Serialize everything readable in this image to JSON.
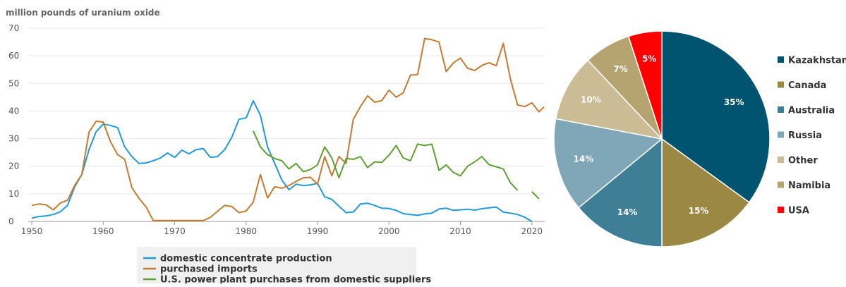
{
  "chart_data": [
    {
      "type": "line",
      "ylabel": "million pounds of uranium oxide",
      "xlim": [
        1949.5,
        2021.8
      ],
      "ylim": [
        0,
        70
      ],
      "x_ticks": [
        "1950",
        "1960",
        "1970",
        "1980",
        "1990",
        "2000",
        "2010",
        "2020"
      ],
      "y_ticks": [
        "0",
        "10",
        "20",
        "30",
        "40",
        "50",
        "60",
        "70"
      ],
      "grid": "horizontal",
      "legend_position": "bottom",
      "series": [
        {
          "name": "domestic concentrate production",
          "color": "#1f9bd7",
          "points": [
            [
              1950,
              1.2
            ],
            [
              1951,
              1.8
            ],
            [
              1952,
              2.0
            ],
            [
              1953,
              2.5
            ],
            [
              1954,
              3.5
            ],
            [
              1955,
              5.8
            ],
            [
              1956,
              12.5
            ],
            [
              1957,
              17.0
            ],
            [
              1958,
              26.0
            ],
            [
              1959,
              32.5
            ],
            [
              1960,
              35.3
            ],
            [
              1961,
              34.8
            ],
            [
              1962,
              34.0
            ],
            [
              1963,
              27.0
            ],
            [
              1964,
              23.5
            ],
            [
              1965,
              21.0
            ],
            [
              1966,
              21.2
            ],
            [
              1967,
              22.0
            ],
            [
              1968,
              23.0
            ],
            [
              1969,
              24.8
            ],
            [
              1970,
              23.2
            ],
            [
              1971,
              25.8
            ],
            [
              1972,
              24.5
            ],
            [
              1973,
              26.0
            ],
            [
              1974,
              26.4
            ],
            [
              1975,
              23.2
            ],
            [
              1976,
              23.5
            ],
            [
              1977,
              26.0
            ],
            [
              1978,
              30.5
            ],
            [
              1979,
              37.0
            ],
            [
              1980,
              37.5
            ],
            [
              1981,
              43.7
            ],
            [
              1982,
              38.5
            ],
            [
              1983,
              27.0
            ],
            [
              1984,
              21.0
            ],
            [
              1985,
              15.0
            ],
            [
              1986,
              11.5
            ],
            [
              1987,
              13.5
            ],
            [
              1988,
              13.0
            ],
            [
              1989,
              13.2
            ],
            [
              1990,
              13.8
            ],
            [
              1991,
              8.9
            ],
            [
              1992,
              8.0
            ],
            [
              1993,
              5.5
            ],
            [
              1994,
              3.2
            ],
            [
              1995,
              3.4
            ],
            [
              1996,
              6.3
            ],
            [
              1997,
              6.6
            ],
            [
              1998,
              5.8
            ],
            [
              1999,
              4.8
            ],
            [
              2000,
              4.7
            ],
            [
              2001,
              4.0
            ],
            [
              2002,
              2.8
            ],
            [
              2003,
              2.5
            ],
            [
              2004,
              2.2
            ],
            [
              2005,
              2.7
            ],
            [
              2006,
              3.0
            ],
            [
              2007,
              4.5
            ],
            [
              2008,
              4.8
            ],
            [
              2009,
              4.0
            ],
            [
              2010,
              4.2
            ],
            [
              2011,
              4.4
            ],
            [
              2012,
              4.1
            ],
            [
              2013,
              4.6
            ],
            [
              2014,
              4.9
            ],
            [
              2015,
              5.2
            ],
            [
              2016,
              3.4
            ],
            [
              2017,
              3.0
            ],
            [
              2018,
              2.5
            ],
            [
              2019,
              1.5
            ],
            [
              2020,
              0.0
            ]
          ]
        },
        {
          "name": "purchased imports",
          "color": "#c67b32",
          "points": [
            [
              1950,
              5.8
            ],
            [
              1951,
              6.3
            ],
            [
              1952,
              6.0
            ],
            [
              1953,
              4.2
            ],
            [
              1954,
              6.7
            ],
            [
              1955,
              7.7
            ],
            [
              1956,
              13.0
            ],
            [
              1957,
              17.0
            ],
            [
              1958,
              32.3
            ],
            [
              1959,
              36.3
            ],
            [
              1960,
              36.0
            ],
            [
              1961,
              29.0
            ],
            [
              1962,
              24.2
            ],
            [
              1963,
              22.5
            ],
            [
              1964,
              12.3
            ],
            [
              1965,
              8.4
            ],
            [
              1966,
              5.2
            ],
            [
              1967,
              0.3
            ],
            [
              1968,
              0.3
            ],
            [
              1969,
              0.3
            ],
            [
              1970,
              0.3
            ],
            [
              1971,
              0.3
            ],
            [
              1972,
              0.3
            ],
            [
              1973,
              0.3
            ],
            [
              1974,
              0.3
            ],
            [
              1975,
              1.5
            ],
            [
              1976,
              3.7
            ],
            [
              1977,
              5.8
            ],
            [
              1978,
              5.4
            ],
            [
              1979,
              3.2
            ],
            [
              1980,
              3.8
            ],
            [
              1981,
              7.0
            ],
            [
              1982,
              17.0
            ],
            [
              1983,
              8.5
            ],
            [
              1984,
              12.6
            ],
            [
              1985,
              12.0
            ],
            [
              1986,
              13.0
            ],
            [
              1987,
              14.5
            ],
            [
              1988,
              15.8
            ],
            [
              1989,
              16.0
            ],
            [
              1990,
              13.5
            ],
            [
              1991,
              23.5
            ],
            [
              1992,
              16.5
            ],
            [
              1993,
              23.5
            ],
            [
              1994,
              21.0
            ],
            [
              1995,
              37.0
            ],
            [
              1996,
              41.6
            ],
            [
              1997,
              45.5
            ],
            [
              1998,
              43.2
            ],
            [
              1999,
              43.8
            ],
            [
              2000,
              47.6
            ],
            [
              2001,
              45.0
            ],
            [
              2002,
              46.6
            ],
            [
              2003,
              53.0
            ],
            [
              2004,
              53.2
            ],
            [
              2005,
              66.3
            ],
            [
              2006,
              65.8
            ],
            [
              2007,
              65.0
            ],
            [
              2008,
              54.3
            ],
            [
              2009,
              57.4
            ],
            [
              2010,
              59.2
            ],
            [
              2011,
              55.5
            ],
            [
              2012,
              54.7
            ],
            [
              2013,
              56.5
            ],
            [
              2014,
              57.5
            ],
            [
              2015,
              56.4
            ],
            [
              2016,
              64.5
            ],
            [
              2017,
              51.6
            ],
            [
              2018,
              42.2
            ],
            [
              2019,
              41.6
            ],
            [
              2020,
              43.0
            ],
            [
              2021,
              39.7
            ],
            [
              2021.7,
              41.5
            ]
          ]
        },
        {
          "name": "U.S. power plant purchases from domestic suppliers",
          "color": "#5fa032",
          "segments": [
            [
              [
                1981,
                32.8
              ],
              [
                1982,
                27.0
              ],
              [
                1983,
                24.2
              ],
              [
                1984,
                22.8
              ],
              [
                1985,
                22.0
              ],
              [
                1986,
                19.0
              ],
              [
                1987,
                21.0
              ],
              [
                1988,
                18.0
              ],
              [
                1989,
                18.8
              ],
              [
                1990,
                20.5
              ],
              [
                1991,
                27.0
              ],
              [
                1992,
                23.0
              ],
              [
                1993,
                15.8
              ],
              [
                1994,
                22.8
              ],
              [
                1995,
                22.5
              ],
              [
                1996,
                23.5
              ],
              [
                1997,
                19.5
              ],
              [
                1998,
                21.6
              ],
              [
                1999,
                21.4
              ],
              [
                2000,
                24.0
              ],
              [
                2001,
                27.5
              ],
              [
                2002,
                23.0
              ],
              [
                2003,
                22.0
              ],
              [
                2004,
                28.0
              ],
              [
                2005,
                27.5
              ],
              [
                2006,
                28.0
              ],
              [
                2007,
                18.5
              ],
              [
                2008,
                20.5
              ],
              [
                2009,
                17.8
              ],
              [
                2010,
                16.5
              ],
              [
                2011,
                20.0
              ],
              [
                2012,
                21.6
              ],
              [
                2013,
                23.5
              ],
              [
                2014,
                20.6
              ],
              [
                2015,
                19.8
              ],
              [
                2016,
                19.0
              ],
              [
                2017,
                14.0
              ],
              [
                2018,
                11.3
              ]
            ],
            [
              [
                2020,
                10.8
              ],
              [
                2021,
                8.2
              ]
            ]
          ]
        }
      ]
    },
    {
      "type": "pie",
      "legend_position": "right",
      "slices": [
        {
          "label": "Kazakhstan",
          "value": 35,
          "display": "35%",
          "color": "#005470"
        },
        {
          "label": "Canada",
          "value": 15,
          "display": "15%",
          "color": "#9b8842"
        },
        {
          "label": "Australia",
          "value": 14,
          "display": "14%",
          "color": "#3f7f96"
        },
        {
          "label": "Russia",
          "value": 14,
          "display": "14%",
          "color": "#7fa7b8"
        },
        {
          "label": "Other",
          "value": 10,
          "display": "10%",
          "color": "#cbbc96"
        },
        {
          "label": "Namibia",
          "value": 7,
          "display": "7%",
          "color": "#b5a470"
        },
        {
          "label": "USA",
          "value": 5,
          "display": "5%",
          "color": "#ff0000"
        }
      ]
    }
  ]
}
